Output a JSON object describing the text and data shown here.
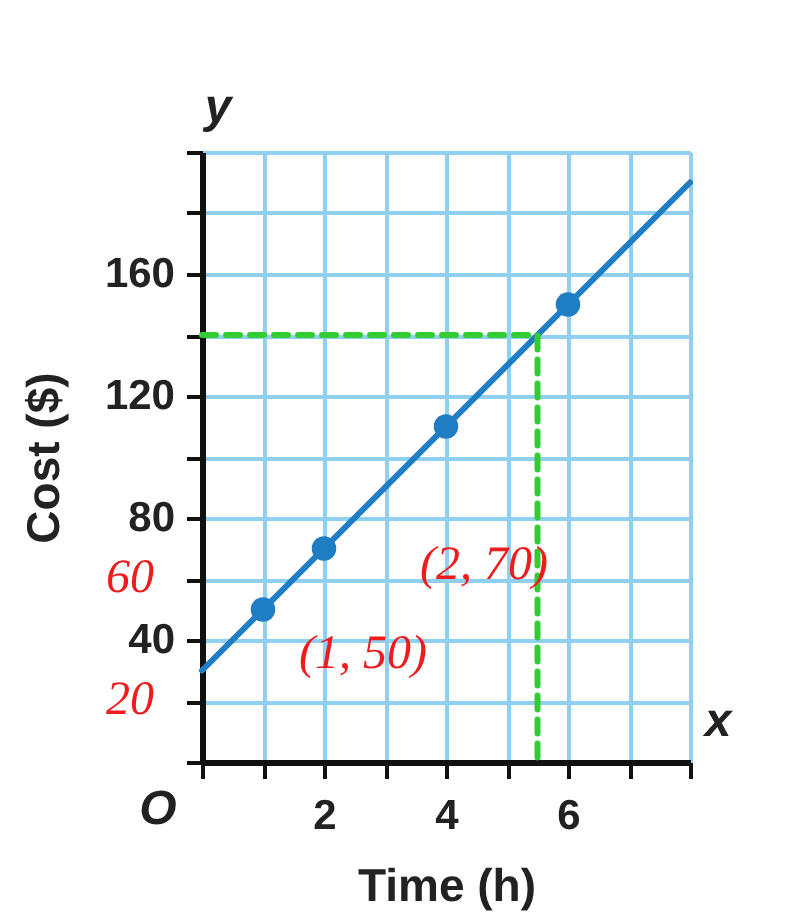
{
  "chart_data": {
    "type": "line",
    "xlabel": "Time (h)",
    "ylabel": "Cost ($)",
    "xlim": [
      0,
      8
    ],
    "ylim": [
      0,
      200
    ],
    "xticks": [
      {
        "value": 0,
        "label": null
      },
      {
        "value": 1,
        "label": null
      },
      2,
      {
        "value": 3,
        "label": null
      },
      4,
      {
        "value": 5,
        "label": null
      },
      6,
      {
        "value": 7,
        "label": null
      },
      {
        "value": 8,
        "label": null
      }
    ],
    "yticks": [
      {
        "value": 0,
        "label": null
      },
      {
        "value": 20,
        "label": null
      },
      40,
      {
        "value": 60,
        "label": null
      },
      80,
      {
        "value": 100,
        "label": null
      },
      120,
      {
        "value": 140,
        "label": null
      },
      160,
      {
        "value": 180,
        "label": null
      },
      {
        "value": 200,
        "label": null
      }
    ],
    "grid": true,
    "series": [
      {
        "color": "#1f7dc4",
        "x": [
          0,
          8
        ],
        "values": [
          30,
          190
        ],
        "line_style": "solid",
        "marker": "none"
      },
      {
        "type": "scatter",
        "color": "#1f7dc4",
        "x": [
          1,
          2,
          4,
          6
        ],
        "values": [
          50,
          70,
          110,
          150
        ],
        "marker": "circle"
      },
      {
        "color": "#33cc33",
        "x": [
          0,
          5.5,
          5.5
        ],
        "values": [
          140,
          140,
          0
        ],
        "line_style": "dashed",
        "marker": "none"
      }
    ],
    "annotations": [
      "y",
      "x",
      "O",
      "60",
      "20",
      {
        "text": "(2, 70)",
        "x": 2,
        "y": 70
      },
      {
        "text": "(1, 50)",
        "x": 1,
        "y": 50
      }
    ]
  }
}
